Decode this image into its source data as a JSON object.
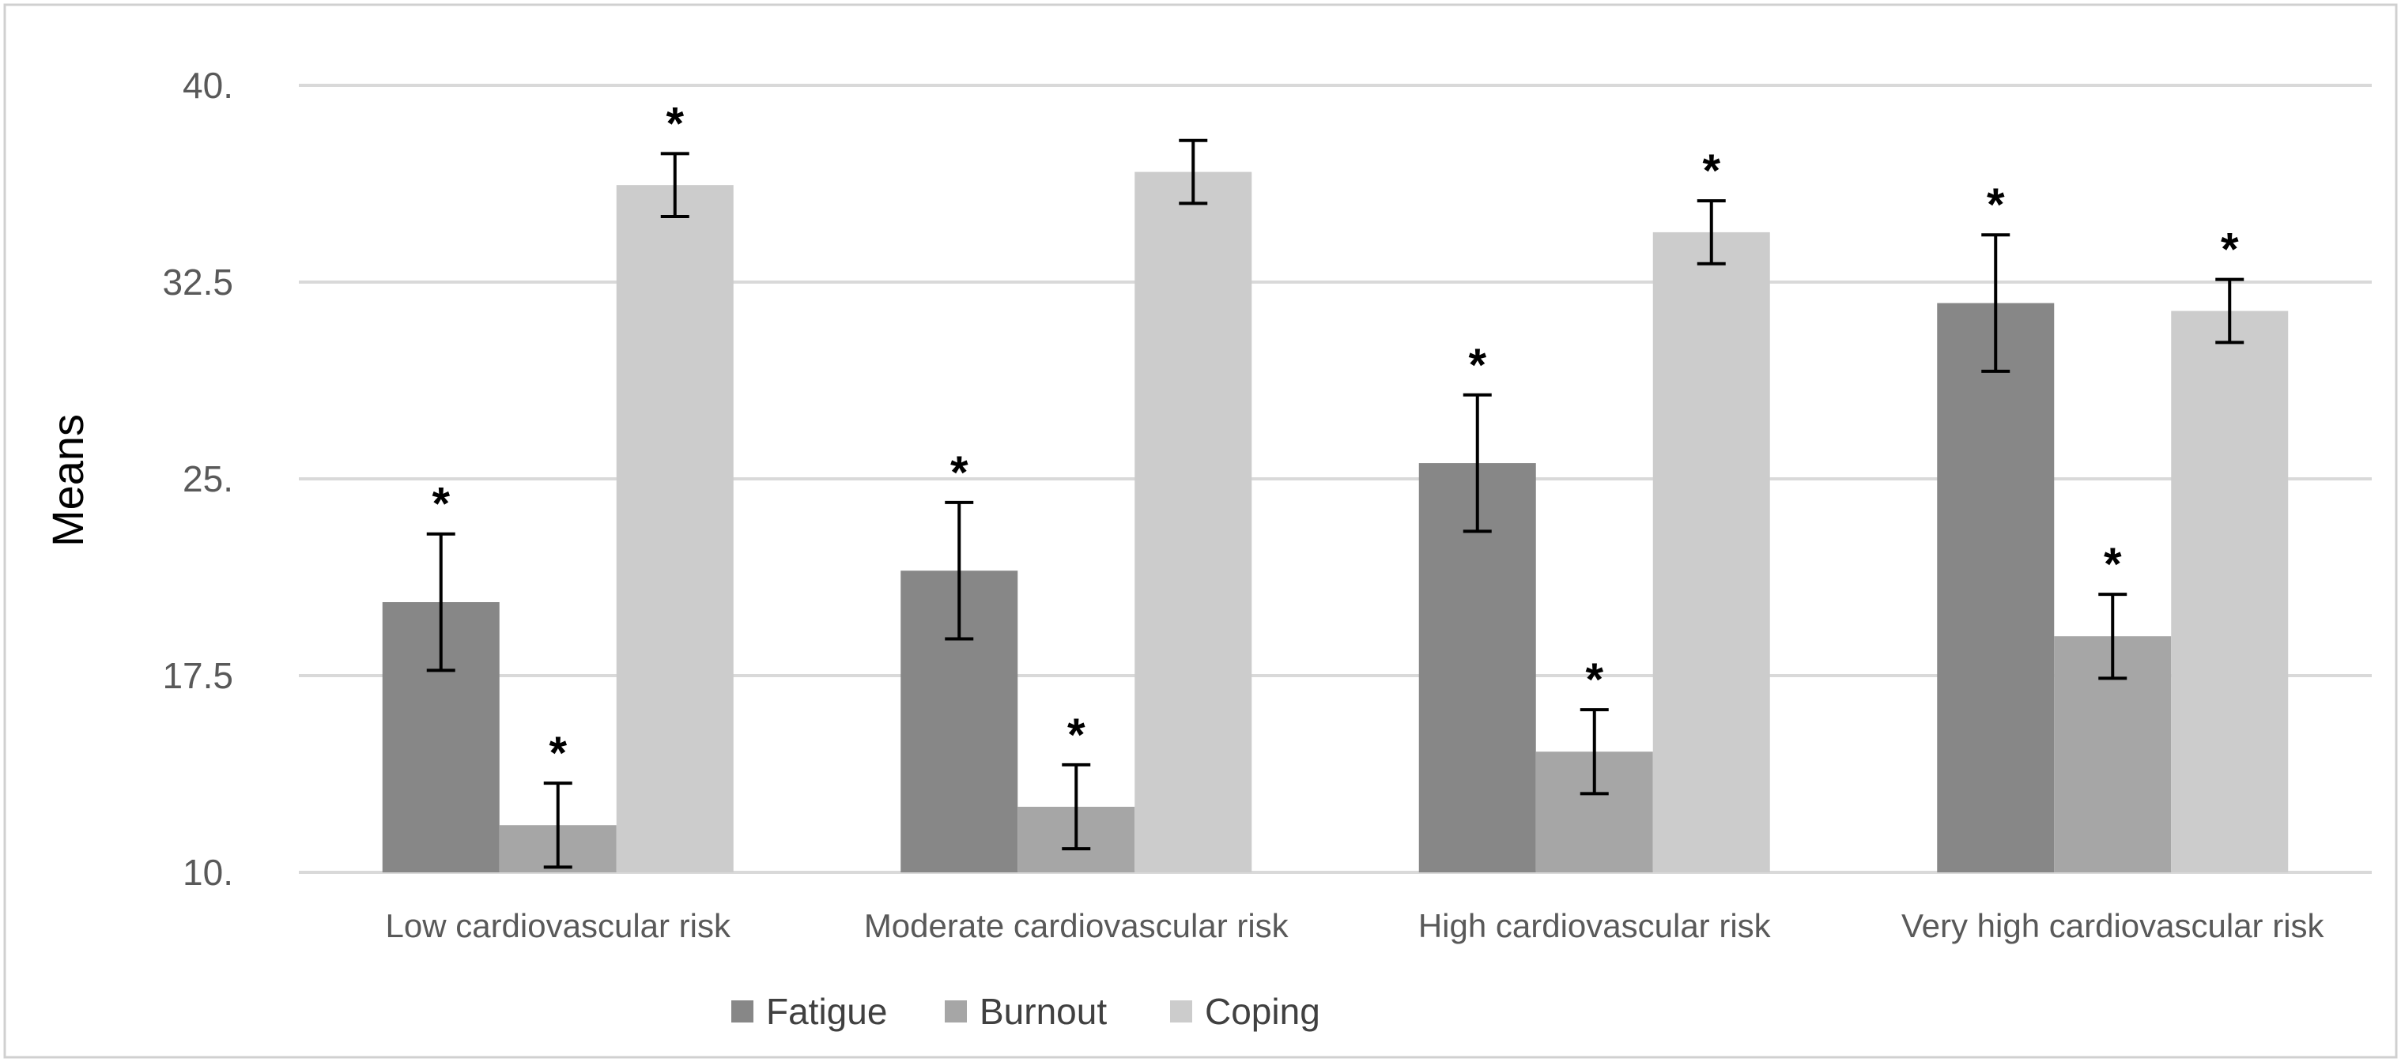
{
  "chart_data": {
    "type": "bar",
    "title": "",
    "xlabel": "",
    "ylabel": "Means",
    "ylim": [
      10,
      40
    ],
    "yticks": [
      10,
      17.5,
      25,
      32.5,
      40
    ],
    "ytick_labels": [
      "10.",
      "17.5",
      "25.",
      "32.5",
      "40."
    ],
    "grid": true,
    "legend_position": "bottom",
    "categories": [
      "Low cardiovascular risk",
      "Moderate cardiovascular risk",
      "High cardiovascular risk",
      "Very high cardiovascular risk"
    ],
    "series": [
      {
        "name": "Fatigue",
        "color": "#878787",
        "values": [
          20.3,
          21.5,
          25.6,
          31.7
        ],
        "errors": [
          2.6,
          2.6,
          2.6,
          2.6
        ],
        "significant": [
          "*",
          "*",
          "*",
          "*"
        ]
      },
      {
        "name": "Burnout",
        "color": "#a6a6a6",
        "values": [
          11.8,
          12.5,
          14.6,
          19.0
        ],
        "errors": [
          1.6,
          1.6,
          1.6,
          1.6
        ],
        "significant": [
          "*",
          "*",
          "*",
          "*"
        ]
      },
      {
        "name": "Coping",
        "color": "#cccccc",
        "values": [
          36.2,
          36.7,
          34.4,
          31.4
        ],
        "errors": [
          1.2,
          1.2,
          1.2,
          1.2
        ],
        "significant": [
          "*",
          "",
          "*",
          "*"
        ]
      }
    ]
  }
}
